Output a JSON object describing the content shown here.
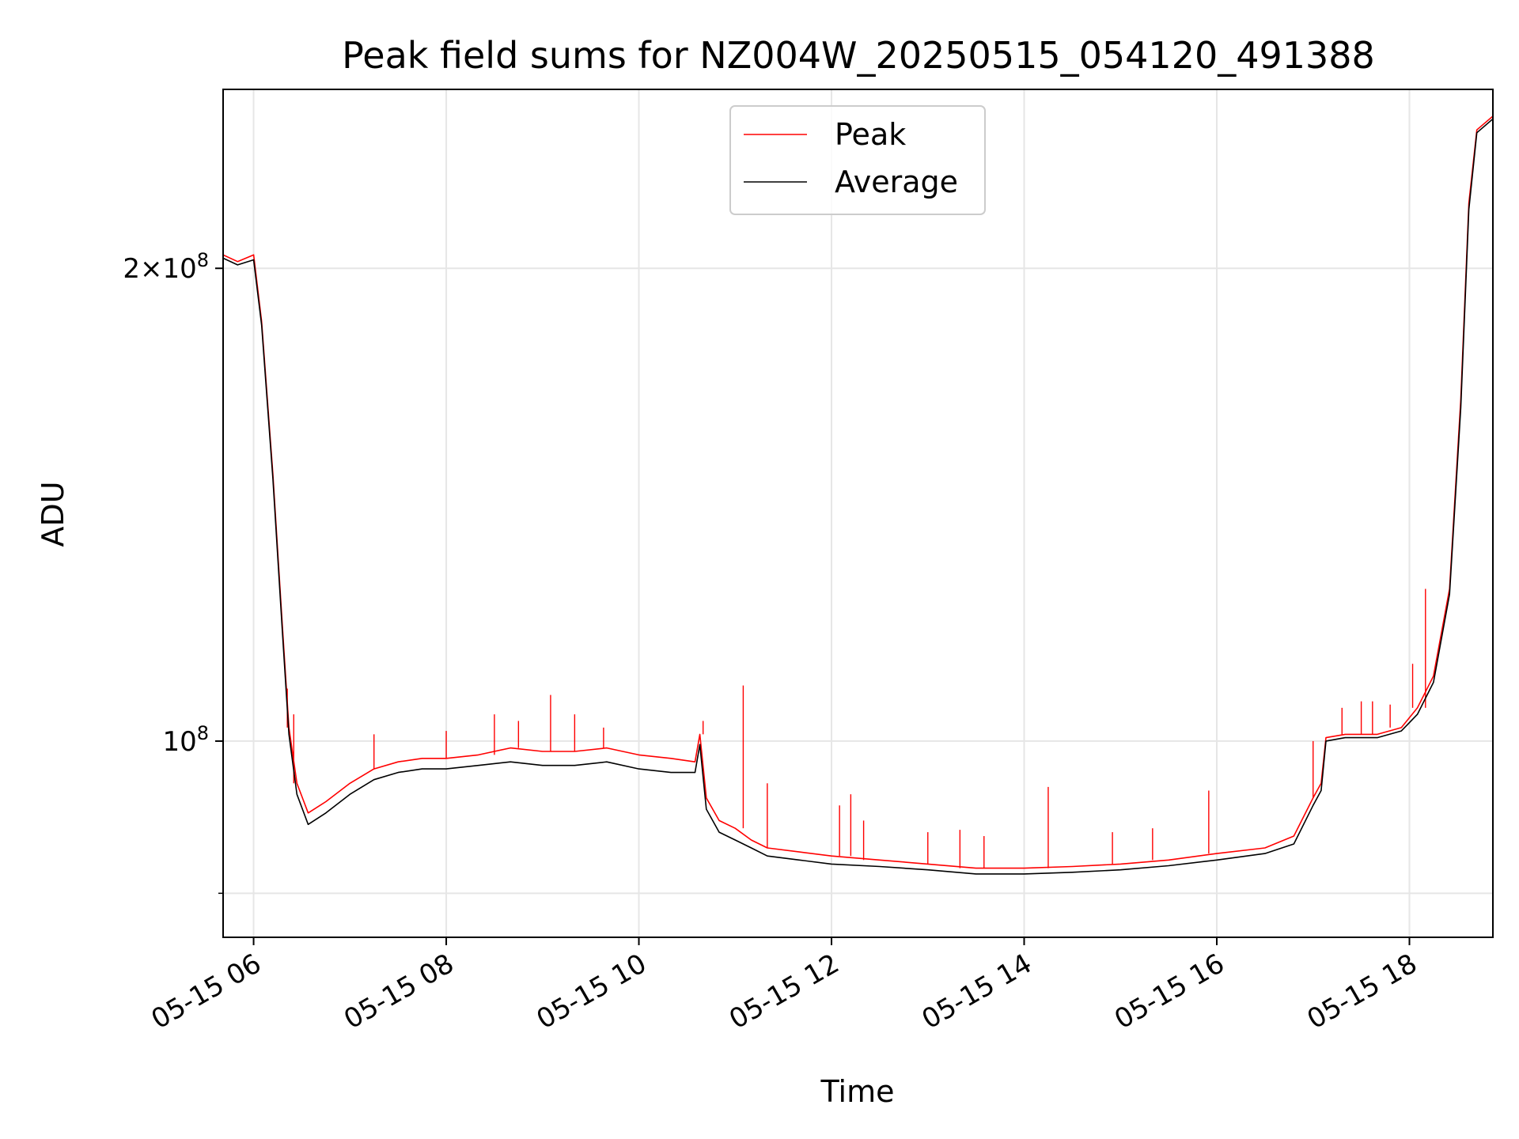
{
  "chart_data": {
    "type": "line",
    "title": "Peak field sums for NZ004W_20250515_054120_491388",
    "xlabel": "Time",
    "ylabel": "ADU",
    "y_scale": "log",
    "grid": true,
    "legend_position": "upper center",
    "xlim": [
      "05-15 05:41",
      "05-15 18:52"
    ],
    "ylim": [
      75000000,
      260000000
    ],
    "x_ticks": [
      "05-15 06",
      "05-15 08",
      "05-15 10",
      "05-15 12",
      "05-15 14",
      "05-15 16",
      "05-15 18"
    ],
    "y_ticks": [
      {
        "value": 200000000,
        "base": "2×10",
        "exp": "8"
      },
      {
        "value": 100000000,
        "base": "10",
        "exp": "8"
      }
    ],
    "y_minor_ticks": [
      80000000
    ],
    "series": [
      {
        "name": "Peak",
        "color": "#ff0000",
        "points": [
          [
            "05-15 05:41",
            204000000
          ],
          [
            "05-15 05:50",
            202000000
          ],
          [
            "05-15 06:00",
            204000000
          ],
          [
            "05-15 06:05",
            185000000
          ],
          [
            "05-15 06:12",
            148000000
          ],
          [
            "05-15 06:18",
            118000000
          ],
          [
            "05-15 06:22",
            102000000
          ],
          [
            "05-15 06:27",
            94000000
          ],
          [
            "05-15 06:34",
            90000000
          ],
          [
            "05-15 06:45",
            91500000
          ],
          [
            "05-15 07:00",
            94000000
          ],
          [
            "05-15 07:15",
            96000000
          ],
          [
            "05-15 07:30",
            97000000
          ],
          [
            "05-15 07:45",
            97500000
          ],
          [
            "05-15 08:00",
            97500000
          ],
          [
            "05-15 08:20",
            98000000
          ],
          [
            "05-15 08:40",
            99000000
          ],
          [
            "05-15 09:00",
            98500000
          ],
          [
            "05-15 09:20",
            98500000
          ],
          [
            "05-15 09:40",
            99000000
          ],
          [
            "05-15 10:00",
            98000000
          ],
          [
            "05-15 10:20",
            97500000
          ],
          [
            "05-15 10:35",
            97000000
          ],
          [
            "05-15 10:38",
            101000000
          ],
          [
            "05-15 10:42",
            92000000
          ],
          [
            "05-15 10:50",
            89000000
          ],
          [
            "05-15 11:00",
            88000000
          ],
          [
            "05-15 11:10",
            86500000
          ],
          [
            "05-15 11:20",
            85500000
          ],
          [
            "05-15 11:40",
            85000000
          ],
          [
            "05-15 12:00",
            84500000
          ],
          [
            "05-15 12:30",
            84000000
          ],
          [
            "05-15 13:00",
            83500000
          ],
          [
            "05-15 13:30",
            83000000
          ],
          [
            "05-15 14:00",
            83000000
          ],
          [
            "05-15 14:30",
            83200000
          ],
          [
            "05-15 15:00",
            83500000
          ],
          [
            "05-15 15:30",
            84000000
          ],
          [
            "05-15 16:00",
            84800000
          ],
          [
            "05-15 16:30",
            85500000
          ],
          [
            "05-15 16:48",
            87000000
          ],
          [
            "05-15 17:00",
            92000000
          ],
          [
            "05-15 17:05",
            94000000
          ],
          [
            "05-15 17:08",
            100500000
          ],
          [
            "05-15 17:20",
            101000000
          ],
          [
            "05-15 17:40",
            101000000
          ],
          [
            "05-15 17:55",
            102000000
          ],
          [
            "05-15 18:05",
            105000000
          ],
          [
            "05-15 18:15",
            110000000
          ],
          [
            "05-15 18:25",
            125000000
          ],
          [
            "05-15 18:32",
            165000000
          ],
          [
            "05-15 18:37",
            220000000
          ],
          [
            "05-15 18:42",
            245000000
          ],
          [
            "05-15 18:52",
            250000000
          ]
        ],
        "spikes": [
          [
            "05-15 06:21",
            108000000
          ],
          [
            "05-15 06:25",
            104000000
          ],
          [
            "05-15 07:15",
            101000000
          ],
          [
            "05-15 08:00",
            101500000
          ],
          [
            "05-15 08:30",
            104000000
          ],
          [
            "05-15 08:45",
            103000000
          ],
          [
            "05-15 09:05",
            107000000
          ],
          [
            "05-15 09:20",
            104000000
          ],
          [
            "05-15 09:38",
            102000000
          ],
          [
            "05-15 10:40",
            103000000
          ],
          [
            "05-15 11:05",
            108500000
          ],
          [
            "05-15 11:20",
            94000000
          ],
          [
            "05-15 12:05",
            91000000
          ],
          [
            "05-15 12:12",
            92500000
          ],
          [
            "05-15 12:20",
            89000000
          ],
          [
            "05-15 13:00",
            87500000
          ],
          [
            "05-15 13:20",
            87800000
          ],
          [
            "05-15 13:35",
            87000000
          ],
          [
            "05-15 14:15",
            93500000
          ],
          [
            "05-15 14:55",
            87500000
          ],
          [
            "05-15 15:20",
            88000000
          ],
          [
            "05-15 15:55",
            93000000
          ],
          [
            "05-15 17:00",
            100000000
          ],
          [
            "05-15 17:18",
            105000000
          ],
          [
            "05-15 17:30",
            106000000
          ],
          [
            "05-15 17:37",
            106000000
          ],
          [
            "05-15 17:48",
            105500000
          ],
          [
            "05-15 18:02",
            112000000
          ],
          [
            "05-15 18:10",
            125000000
          ]
        ]
      },
      {
        "name": "Average",
        "color": "#000000",
        "points": [
          [
            "05-15 05:41",
            203000000
          ],
          [
            "05-15 05:50",
            201000000
          ],
          [
            "05-15 06:00",
            202500000
          ],
          [
            "05-15 06:05",
            184000000
          ],
          [
            "05-15 06:12",
            147000000
          ],
          [
            "05-15 06:18",
            117000000
          ],
          [
            "05-15 06:22",
            101000000
          ],
          [
            "05-15 06:27",
            92500000
          ],
          [
            "05-15 06:34",
            88500000
          ],
          [
            "05-15 06:45",
            90000000
          ],
          [
            "05-15 07:00",
            92500000
          ],
          [
            "05-15 07:15",
            94500000
          ],
          [
            "05-15 07:30",
            95500000
          ],
          [
            "05-15 07:45",
            96000000
          ],
          [
            "05-15 08:00",
            96000000
          ],
          [
            "05-15 08:20",
            96500000
          ],
          [
            "05-15 08:40",
            97000000
          ],
          [
            "05-15 09:00",
            96500000
          ],
          [
            "05-15 09:20",
            96500000
          ],
          [
            "05-15 09:40",
            97000000
          ],
          [
            "05-15 10:00",
            96000000
          ],
          [
            "05-15 10:20",
            95500000
          ],
          [
            "05-15 10:35",
            95500000
          ],
          [
            "05-15 10:38",
            99500000
          ],
          [
            "05-15 10:42",
            90500000
          ],
          [
            "05-15 10:50",
            87500000
          ],
          [
            "05-15 11:00",
            86500000
          ],
          [
            "05-15 11:10",
            85500000
          ],
          [
            "05-15 11:20",
            84500000
          ],
          [
            "05-15 11:40",
            84000000
          ],
          [
            "05-15 12:00",
            83500000
          ],
          [
            "05-15 12:30",
            83200000
          ],
          [
            "05-15 13:00",
            82800000
          ],
          [
            "05-15 13:30",
            82300000
          ],
          [
            "05-15 14:00",
            82300000
          ],
          [
            "05-15 14:30",
            82500000
          ],
          [
            "05-15 15:00",
            82800000
          ],
          [
            "05-15 15:30",
            83300000
          ],
          [
            "05-15 16:00",
            84000000
          ],
          [
            "05-15 16:30",
            84800000
          ],
          [
            "05-15 16:48",
            86000000
          ],
          [
            "05-15 17:00",
            91000000
          ],
          [
            "05-15 17:05",
            93000000
          ],
          [
            "05-15 17:08",
            100000000
          ],
          [
            "05-15 17:20",
            100500000
          ],
          [
            "05-15 17:40",
            100500000
          ],
          [
            "05-15 17:55",
            101500000
          ],
          [
            "05-15 18:05",
            104000000
          ],
          [
            "05-15 18:15",
            109000000
          ],
          [
            "05-15 18:25",
            124000000
          ],
          [
            "05-15 18:32",
            163000000
          ],
          [
            "05-15 18:37",
            218000000
          ],
          [
            "05-15 18:42",
            244000000
          ],
          [
            "05-15 18:52",
            249000000
          ]
        ]
      }
    ]
  }
}
